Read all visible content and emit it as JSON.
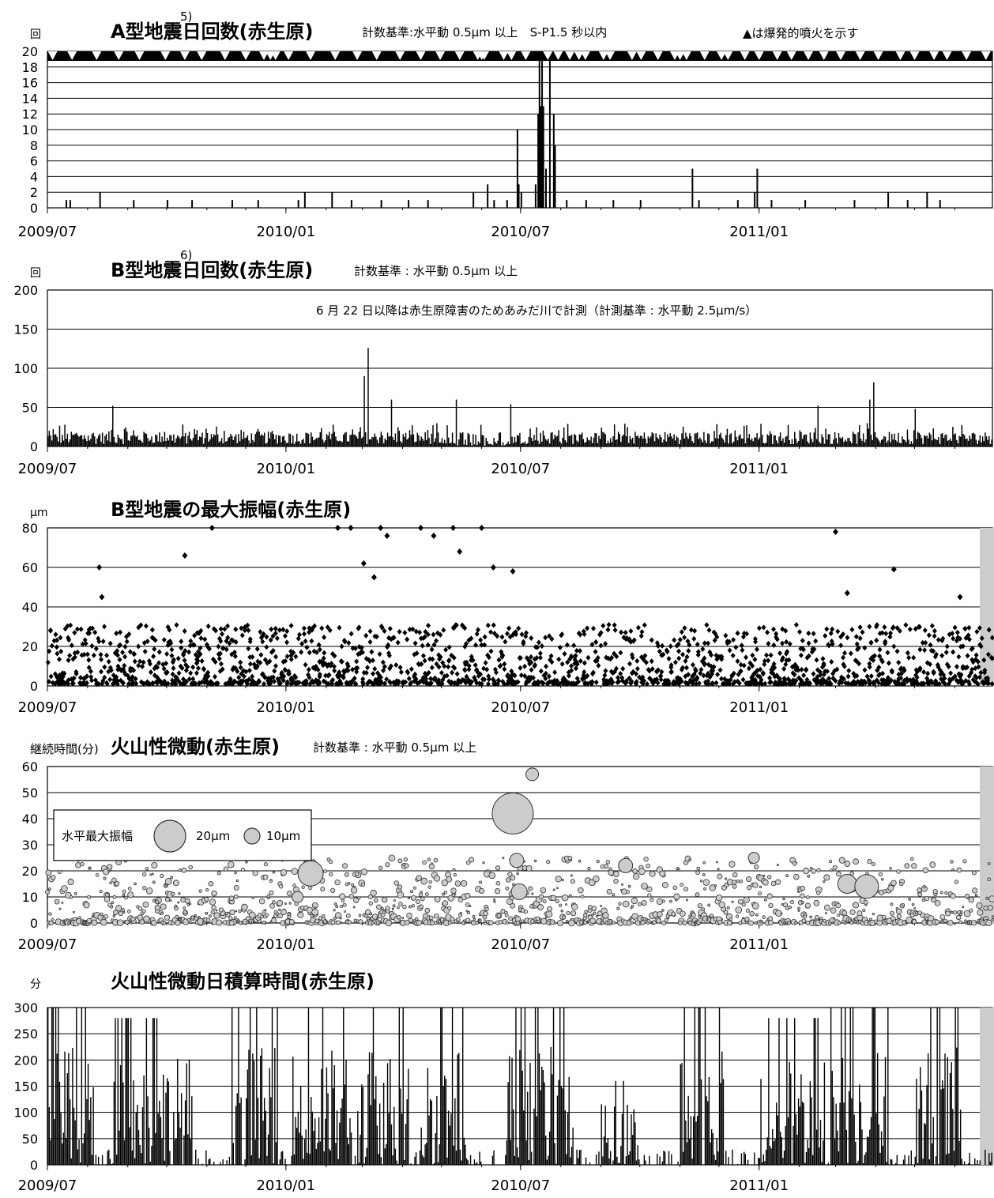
{
  "chart_data": [
    {
      "id": "a_type",
      "type": "bar",
      "title": "A型地震日回数(赤生原)",
      "superscript": "5)",
      "unit": "回",
      "subtitle": "計数基準:水平動 0.5μm 以上　S-P1.5 秒以内",
      "legend_note": "▲は爆発的噴火を示す",
      "ylim": [
        0,
        20
      ],
      "yticks": [
        0,
        2,
        4,
        6,
        8,
        10,
        12,
        14,
        16,
        18,
        20
      ],
      "xticks": [
        "2009/07",
        "2010/01",
        "2010/07",
        "2011/01"
      ],
      "grid": true,
      "daily_counts": [
        {
          "date": "2009/07/15",
          "value": 1
        },
        {
          "date": "2009/07/18",
          "value": 1
        },
        {
          "date": "2009/08/10",
          "value": 2
        },
        {
          "date": "2009/09/05",
          "value": 1
        },
        {
          "date": "2009/10/01",
          "value": 1
        },
        {
          "date": "2009/10/20",
          "value": 1
        },
        {
          "date": "2009/11/20",
          "value": 1
        },
        {
          "date": "2009/12/10",
          "value": 1
        },
        {
          "date": "2010/01/10",
          "value": 1
        },
        {
          "date": "2010/01/15",
          "value": 2
        },
        {
          "date": "2010/02/05",
          "value": 2
        },
        {
          "date": "2010/02/20",
          "value": 1
        },
        {
          "date": "2010/03/15",
          "value": 1
        },
        {
          "date": "2010/04/05",
          "value": 1
        },
        {
          "date": "2010/04/20",
          "value": 1
        },
        {
          "date": "2010/05/25",
          "value": 2
        },
        {
          "date": "2010/06/05",
          "value": 3
        },
        {
          "date": "2010/06/10",
          "value": 1
        },
        {
          "date": "2010/06/20",
          "value": 1
        },
        {
          "date": "2010/06/28",
          "value": 10
        },
        {
          "date": "2010/06/29",
          "value": 3
        },
        {
          "date": "2010/07/01",
          "value": 2
        },
        {
          "date": "2010/07/12",
          "value": 3
        },
        {
          "date": "2010/07/14",
          "value": 12
        },
        {
          "date": "2010/07/15",
          "value": 19
        },
        {
          "date": "2010/07/16",
          "value": 13
        },
        {
          "date": "2010/07/17",
          "value": 19
        },
        {
          "date": "2010/07/18",
          "value": 13
        },
        {
          "date": "2010/07/20",
          "value": 5
        },
        {
          "date": "2010/07/23",
          "value": 19
        },
        {
          "date": "2010/07/26",
          "value": 12
        },
        {
          "date": "2010/07/27",
          "value": 8
        },
        {
          "date": "2010/08/05",
          "value": 1
        },
        {
          "date": "2010/08/20",
          "value": 1
        },
        {
          "date": "2010/09/10",
          "value": 1
        },
        {
          "date": "2010/10/01",
          "value": 1
        },
        {
          "date": "2010/11/10",
          "value": 5
        },
        {
          "date": "2010/11/15",
          "value": 1
        },
        {
          "date": "2010/12/15",
          "value": 1
        },
        {
          "date": "2010/12/28",
          "value": 2
        },
        {
          "date": "2010/12/30",
          "value": 5
        },
        {
          "date": "2011/01/10",
          "value": 1
        },
        {
          "date": "2011/02/05",
          "value": 1
        },
        {
          "date": "2011/03/15",
          "value": 1
        },
        {
          "date": "2011/04/10",
          "value": 2
        },
        {
          "date": "2011/04/25",
          "value": 1
        },
        {
          "date": "2011/05/10",
          "value": 2
        },
        {
          "date": "2011/05/20",
          "value": 1
        }
      ],
      "explosive_eruption_dates": [
        "2009/07/05",
        "2009/07/20",
        "2009/08/08",
        "2009/08/25",
        "2009/09/10",
        "2009/09/30",
        "2009/10/15",
        "2009/10/28",
        "2009/11/15",
        "2009/12/01",
        "2009/12/15",
        "2009/12/20",
        "2009/12/24",
        "2010/01/03",
        "2010/01/20",
        "2010/02/08",
        "2010/02/25",
        "2010/03/12",
        "2010/03/30",
        "2010/04/15",
        "2010/04/30",
        "2010/05/15",
        "2010/05/29",
        "2010/06/01",
        "2010/06/03",
        "2010/06/18",
        "2010/06/24",
        "2010/07/05",
        "2010/07/22",
        "2010/07/30",
        "2010/08/08",
        "2010/08/15",
        "2010/08/20",
        "2010/09/03",
        "2010/09/08",
        "2010/09/25",
        "2010/10/02",
        "2010/10/15",
        "2010/10/28",
        "2010/11/01",
        "2010/11/06",
        "2010/11/20",
        "2010/12/03",
        "2010/12/08",
        "2010/12/21",
        "2011/01/01",
        "2011/01/15",
        "2011/01/26",
        "2011/02/08",
        "2011/02/20",
        "2011/03/05",
        "2011/03/20",
        "2011/04/03",
        "2011/04/20",
        "2011/05/01",
        "2011/05/16",
        "2011/05/26",
        "2011/06/10",
        "2011/06/25"
      ]
    },
    {
      "id": "b_type",
      "type": "bar",
      "title": "B型地震日回数(赤生原)",
      "superscript": "6)",
      "unit": "回",
      "subtitle": "計数基準 : 水平動 0.5μm 以上",
      "annotation": "6 月 22 日以降は赤生原障害のためあみだ川で計測（計測基準 : 水平動 2.5μm/s）",
      "ylim": [
        0,
        200
      ],
      "yticks": [
        0,
        50,
        100,
        150,
        200
      ],
      "xticks": [
        "2009/07",
        "2010/01",
        "2010/07",
        "2011/01"
      ],
      "grid": true,
      "typical_daily_range": [
        3,
        30
      ],
      "peaks": [
        {
          "date": "2009/08/20",
          "value": 52
        },
        {
          "date": "2010/03/02",
          "value": 90
        },
        {
          "date": "2010/03/05",
          "value": 126
        },
        {
          "date": "2010/03/23",
          "value": 60
        },
        {
          "date": "2010/05/12",
          "value": 60
        },
        {
          "date": "2010/06/23",
          "value": 54
        },
        {
          "date": "2011/02/15",
          "value": 52
        },
        {
          "date": "2011/03/27",
          "value": 60
        },
        {
          "date": "2011/03/30",
          "value": 82
        },
        {
          "date": "2011/05/01",
          "value": 48
        }
      ]
    },
    {
      "id": "b_amplitude",
      "type": "scatter",
      "title": "B型地震の最大振幅(赤生原)",
      "unit": "μm",
      "ylim": [
        0,
        80
      ],
      "yticks": [
        0,
        20,
        40,
        60,
        80
      ],
      "xticks": [
        "2009/07",
        "2010/01",
        "2010/07",
        "2011/01"
      ],
      "grid": true,
      "outliers": [
        {
          "date": "2009/08/10",
          "value": 60
        },
        {
          "date": "2009/08/12",
          "value": 45
        },
        {
          "date": "2009/10/15",
          "value": 66
        },
        {
          "date": "2009/11/05",
          "value": 80
        },
        {
          "date": "2010/02/10",
          "value": 80
        },
        {
          "date": "2010/02/20",
          "value": 80
        },
        {
          "date": "2010/03/02",
          "value": 62
        },
        {
          "date": "2010/03/10",
          "value": 55
        },
        {
          "date": "2010/03/15",
          "value": 80
        },
        {
          "date": "2010/03/20",
          "value": 76
        },
        {
          "date": "2010/04/15",
          "value": 80
        },
        {
          "date": "2010/04/25",
          "value": 76
        },
        {
          "date": "2010/05/10",
          "value": 80
        },
        {
          "date": "2010/05/15",
          "value": 68
        },
        {
          "date": "2010/06/01",
          "value": 80
        },
        {
          "date": "2010/06/10",
          "value": 60
        },
        {
          "date": "2010/06/25",
          "value": 58
        },
        {
          "date": "2011/03/01",
          "value": 78
        },
        {
          "date": "2011/03/10",
          "value": 47
        },
        {
          "date": "2011/04/15",
          "value": 59
        },
        {
          "date": "2011/06/05",
          "value": 45
        }
      ]
    },
    {
      "id": "tremor",
      "type": "scatter",
      "title": "火山性微動(赤生原)",
      "unit": "継続時間(分)",
      "subtitle": "計数基準 : 水平動 0.5μm 以上",
      "legend_title": "水平最大振幅",
      "legend_entries": [
        "20μm",
        "10μm"
      ],
      "ylim": [
        0,
        60
      ],
      "yticks": [
        0,
        10,
        20,
        30,
        40,
        50,
        60
      ],
      "xticks": [
        "2009/07",
        "2010/01",
        "2010/07",
        "2011/01"
      ],
      "grid": true,
      "large_events": [
        {
          "date": "2010/01/20",
          "duration": 19,
          "amplitude": 16
        },
        {
          "date": "2010/06/25",
          "duration": 42,
          "amplitude": 26
        },
        {
          "date": "2010/07/10",
          "duration": 57,
          "amplitude": 8
        },
        {
          "date": "2010/06/28",
          "duration": 24,
          "amplitude": 9
        },
        {
          "date": "2010/06/30",
          "duration": 12,
          "amplitude": 10
        },
        {
          "date": "2010/09/20",
          "duration": 22,
          "amplitude": 9
        },
        {
          "date": "2010/12/28",
          "duration": 25,
          "amplitude": 7
        },
        {
          "date": "2011/03/10",
          "duration": 15,
          "amplitude": 12
        },
        {
          "date": "2011/03/25",
          "duration": 14,
          "amplitude": 15
        },
        {
          "date": "2010/01/10",
          "duration": 10,
          "amplitude": 7
        }
      ]
    },
    {
      "id": "tremor_daily",
      "type": "bar",
      "title": "火山性微動日積算時間(赤生原)",
      "unit": "分",
      "ylim": [
        0,
        300
      ],
      "yticks": [
        0,
        50,
        100,
        150,
        200,
        250,
        300
      ],
      "xticks": [
        "2009/07",
        "2010/01",
        "2010/07",
        "2011/01"
      ],
      "grid": true,
      "active_periods": [
        {
          "start": "2009/07/01",
          "end": "2009/08/05",
          "peak": 300
        },
        {
          "start": "2009/08/20",
          "end": "2009/10/20",
          "peak": 280
        },
        {
          "start": "2009/11/20",
          "end": "2009/12/25",
          "peak": 300
        },
        {
          "start": "2010/01/05",
          "end": "2010/02/20",
          "peak": 300
        },
        {
          "start": "2010/02/25",
          "end": "2010/04/05",
          "peak": 300
        },
        {
          "start": "2010/04/15",
          "end": "2010/05/20",
          "peak": 300
        },
        {
          "start": "2010/06/20",
          "end": "2010/08/10",
          "peak": 300
        },
        {
          "start": "2010/09/01",
          "end": "2010/09/30",
          "peak": 160
        },
        {
          "start": "2010/11/01",
          "end": "2010/12/05",
          "peak": 300
        },
        {
          "start": "2011/01/01",
          "end": "2011/02/20",
          "peak": 280
        },
        {
          "start": "2011/02/25",
          "end": "2011/04/10",
          "peak": 300
        },
        {
          "start": "2011/05/01",
          "end": "2011/06/05",
          "peak": 300
        }
      ]
    }
  ]
}
